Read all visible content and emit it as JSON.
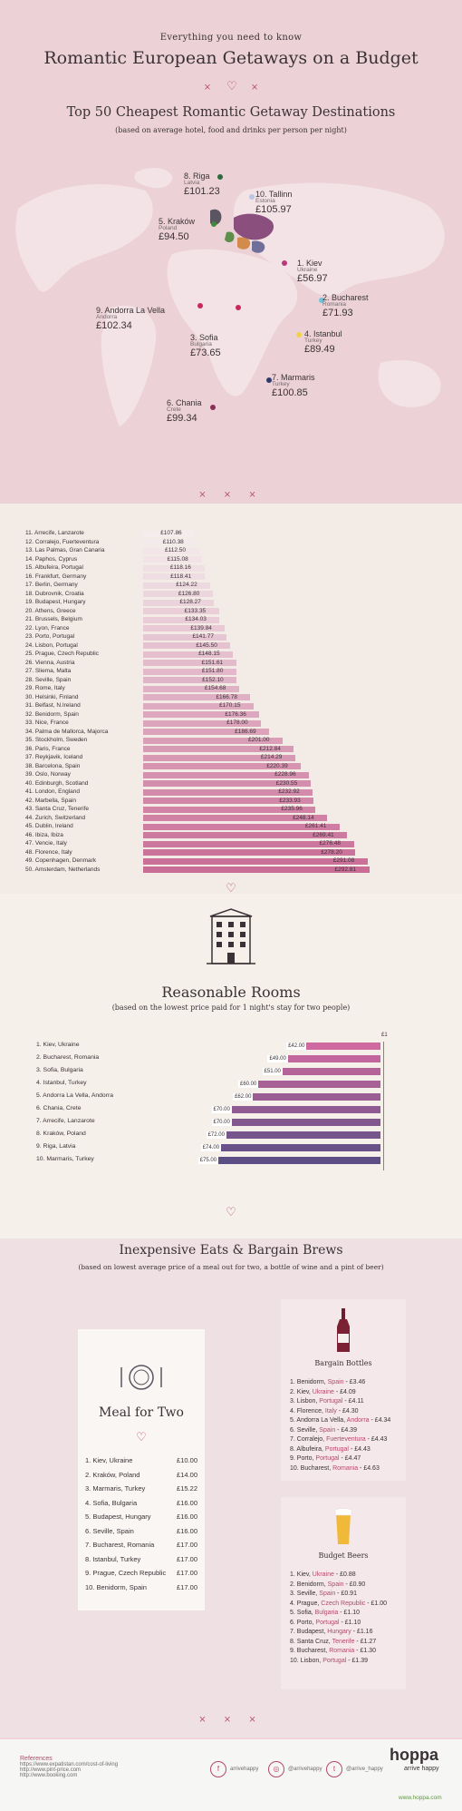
{
  "header": {
    "kicker": "Everything you need to know",
    "title": "Romantic European Getaways on a Budget",
    "section_title": "Top 50 Cheapest Romantic Getaway Destinations",
    "section_sub": "(based on average hotel, food and drinks per person per night)",
    "divider_left": "×",
    "divider_right": "×"
  },
  "map_pins": [
    {
      "name": "8. Riga",
      "country": "Latvia",
      "price": "£101.23",
      "color": "#2e6b3a"
    },
    {
      "name": "10. Tallinn",
      "country": "Estonia",
      "price": "£105.97",
      "color": "#b8c7e6"
    },
    {
      "name": "5. Kraków",
      "country": "Poland",
      "price": "£94.50",
      "color": "#3f8a3a"
    },
    {
      "name": "1. Kiev",
      "country": "Ukraine",
      "price": "£56.97",
      "color": "#b8397a"
    },
    {
      "name": "2. Bucharest",
      "country": "Romania",
      "price": "£71.93",
      "color": "#6fc3d8"
    },
    {
      "name": "9. Andorra La Vella",
      "country": "Andorra",
      "price": "£102.34",
      "color": "#c9285c"
    },
    {
      "name": "3. Sofia",
      "country": "Bulgaria",
      "price": "£73.65",
      "color": "#c9285c"
    },
    {
      "name": "4. Istanbul",
      "country": "Turkey",
      "price": "£89.49",
      "color": "#f0d24a"
    },
    {
      "name": "7. Marmaris",
      "country": "Turkey",
      "price": "£100.85",
      "color": "#2e3a6b"
    },
    {
      "name": "6. Chania",
      "country": "Crete",
      "price": "£99.34",
      "color": "#8a2e5a"
    }
  ],
  "divider_marks": "× × ×",
  "chart_data": [
    {
      "type": "bar",
      "title": "",
      "categories": [
        "11. Arrecife, Lanzarote",
        "12. Corralejo, Fuerteventura",
        "13. Las Palmas, Gran Canaria",
        "14. Paphos, Cyprus",
        "15. Albufeira, Portugal",
        "16. Frankfurt, Germany",
        "17. Berlin, Germany",
        "18. Dubrovnik, Croatia",
        "19. Budapest, Hungary",
        "20. Athens, Greece",
        "21. Brussels, Belgium",
        "22. Lyon, France",
        "23. Porto, Portugal",
        "24. Lisbon, Portugal",
        "25. Prague, Czech Republic",
        "26. Vienna, Austria",
        "27. Sliema, Malta",
        "28. Seville, Spain",
        "29. Rome, Italy",
        "30. Helsinki, Finland",
        "31. Belfast, N.Ireland",
        "32. Benidorm, Spain",
        "33. Nice, France",
        "34. Palma de Mallorca, Majorca",
        "35. Stockholm, Sweden",
        "36. Paris, France",
        "37. Reykjavik, Iceland",
        "38. Barcelona, Spain",
        "39. Oslo, Norway",
        "40. Edinburgh, Scotland",
        "41. London, England",
        "42. Marbella, Spain",
        "43. Santa Cruz, Tenerife",
        "44. Zurich, Switzerland",
        "45. Dublin, Ireland",
        "46. Ibiza, Ibiza",
        "47. Vencie, Italy",
        "48. Florence, Italy",
        "49. Copenhagen, Denmark",
        "50. Amsterdam, Netherlands"
      ],
      "values": [
        107.86,
        110.38,
        112.5,
        115.08,
        118.16,
        118.41,
        124.22,
        126.8,
        128.27,
        133.35,
        134.03,
        139.84,
        141.77,
        145.5,
        148.15,
        151.61,
        151.8,
        152.1,
        154.68,
        166.78,
        170.15,
        176.36,
        178.0,
        186.69,
        201.0,
        212.84,
        214.29,
        220.39,
        228.96,
        230.55,
        232.92,
        233.93,
        235.96,
        248.14,
        261.41,
        269.41,
        276.48,
        278.2,
        291.08,
        292.81
      ],
      "labels": [
        "£107.86",
        "£110.38",
        "£112.50",
        "£115.08",
        "£118.16",
        "£118.41",
        "£124.22",
        "£126.80",
        "£128.27",
        "£133.35",
        "£134.03",
        "£139.84",
        "£141.77",
        "£145.50",
        "£148.15",
        "£151.61",
        "£151.80",
        "£152.10",
        "£154.68",
        "£166.78",
        "£170.15",
        "£176.36",
        "£178.00",
        "£186.69",
        "£201.00",
        "£212.84",
        "£214.29",
        "£220.39",
        "£228.96",
        "£230.55",
        "£232.92",
        "£233.93",
        "£235.96",
        "£248.14",
        "£261.41",
        "£269.41",
        "£276.48",
        "£278.20",
        "£291.08",
        "£292.81"
      ],
      "color_start": "#f4eded",
      "color_end": "#c96d97",
      "ylim": [
        0,
        300
      ]
    },
    {
      "type": "bar",
      "title": "Reasonable Rooms",
      "categories": [
        "1. Kiev, Ukraine",
        "2. Bucharest, Romania",
        "3. Sofia, Bulgaria",
        "4. Istanbul, Turkey",
        "5. Andorra La Vella, Andorra",
        "6. Chania, Crete",
        "7. Arrecife, Lanzarote",
        "8. Kraków, Poland",
        "9. Riga, Latvia",
        "10. Marmaris, Turkey"
      ],
      "values": [
        42.0,
        49.0,
        51.0,
        60.0,
        62.0,
        70.0,
        70.0,
        72.0,
        74.0,
        75.0
      ],
      "labels": [
        "£42.00",
        "£49.00",
        "£51.00",
        "£60.00",
        "£62.00",
        "£70.00",
        "£70.00",
        "£72.00",
        "£74.00",
        "£75.00"
      ],
      "color_start": "#cf6aa0",
      "color_end": "#5b4f86",
      "axis_label": "£1"
    }
  ],
  "rooms": {
    "title": "Reasonable Rooms",
    "subtitle": "(based on the lowest price paid for 1 night's stay for two people)",
    "heart": "♡"
  },
  "eats": {
    "title": "Inexpensive Eats & Bargain Brews",
    "subtitle": "(based on lowest average price of a meal out for two, a bottle of wine and a pint of beer)",
    "meal_title": "Meal for Two",
    "meals": [
      {
        "city": "1. Kiev, Ukraine",
        "price": "£10.00"
      },
      {
        "city": "2. Kraków, Poland",
        "price": "£14.00"
      },
      {
        "city": "3. Marmaris, Turkey",
        "price": "£15.22"
      },
      {
        "city": "4. Sofia, Bulgaria",
        "price": "£16.00"
      },
      {
        "city": "5. Budapest, Hungary",
        "price": "£16.00"
      },
      {
        "city": "6. Seville, Spain",
        "price": "£16.00"
      },
      {
        "city": "7. Bucharest, Romania",
        "price": "£17.00"
      },
      {
        "city": "8. Istanbul, Turkey",
        "price": "£17.00"
      },
      {
        "city": "9. Prague, Czech Republic",
        "price": "£17.00"
      },
      {
        "city": "10. Benidorm, Spain",
        "price": "£17.00"
      }
    ],
    "bottles_title": "Bargain Bottles",
    "bottles": [
      {
        "city": "1. Benidorm,",
        "country": " Spain",
        "price": " - £3.46"
      },
      {
        "city": "2. Kiev,",
        "country": " Ukraine",
        "price": " - £4.09"
      },
      {
        "city": "3. Lisbon,",
        "country": " Portugal",
        "price": " - £4.11"
      },
      {
        "city": "4. Florence,",
        "country": " Italy",
        "price": " - £4.30"
      },
      {
        "city": "5. Andorra La Vella,",
        "country": " Andorra",
        "price": " - £4.34"
      },
      {
        "city": "6. Seville,",
        "country": " Spain",
        "price": " - £4.39"
      },
      {
        "city": "7. Corralejo,",
        "country": " Fuerteventura",
        "price": " - £4.43"
      },
      {
        "city": "8. Albufeira,",
        "country": " Portugal",
        "price": " - £4.43"
      },
      {
        "city": "9. Porto,",
        "country": " Portugal",
        "price": " - £4.47"
      },
      {
        "city": "10. Bucharest,",
        "country": " Romania",
        "price": " - £4.63"
      }
    ],
    "beers_title": "Budget Beers",
    "beers": [
      {
        "city": "1. Kiev,",
        "country": " Ukraine",
        "price": " - £0.88"
      },
      {
        "city": "2. Benidorm,",
        "country": " Spain",
        "price": " - £0.90"
      },
      {
        "city": "3. Seville,",
        "country": " Spain",
        "price": " - £0.91"
      },
      {
        "city": "4. Prague,",
        "country": " Czech Republic",
        "price": " - £1.00"
      },
      {
        "city": "5. Sofia,",
        "country": " Bulgaria",
        "price": " - £1.10"
      },
      {
        "city": "6. Porto,",
        "country": " Portugal",
        "price": " - £1.10"
      },
      {
        "city": "7. Budapest,",
        "country": " Hungary",
        "price": " - £1.16"
      },
      {
        "city": "8. Santa Cruz,",
        "country": " Tenerife",
        "price": " - £1.27"
      },
      {
        "city": "9. Bucharest,",
        "country": " Romania",
        "price": " - £1.30"
      },
      {
        "city": "10. Lisbon,",
        "country": " Portugal",
        "price": " - £1.39"
      }
    ]
  },
  "footer": {
    "refs_title": "References",
    "refs": [
      "https://www.expatistan.com/cost-of-living",
      "http://www.pint-price.com",
      "http://www.booking.com"
    ],
    "social": [
      {
        "icon": "facebook-icon",
        "glyph": "f",
        "handle": "arrivehappy"
      },
      {
        "icon": "instagram-icon",
        "glyph": "◎",
        "handle": "@arrivehappy"
      },
      {
        "icon": "twitter-icon",
        "glyph": "t",
        "handle": "@arrive_happy"
      }
    ],
    "brand": "hoppa",
    "tagline": "arrive happy",
    "url": "www.hoppa.com"
  }
}
